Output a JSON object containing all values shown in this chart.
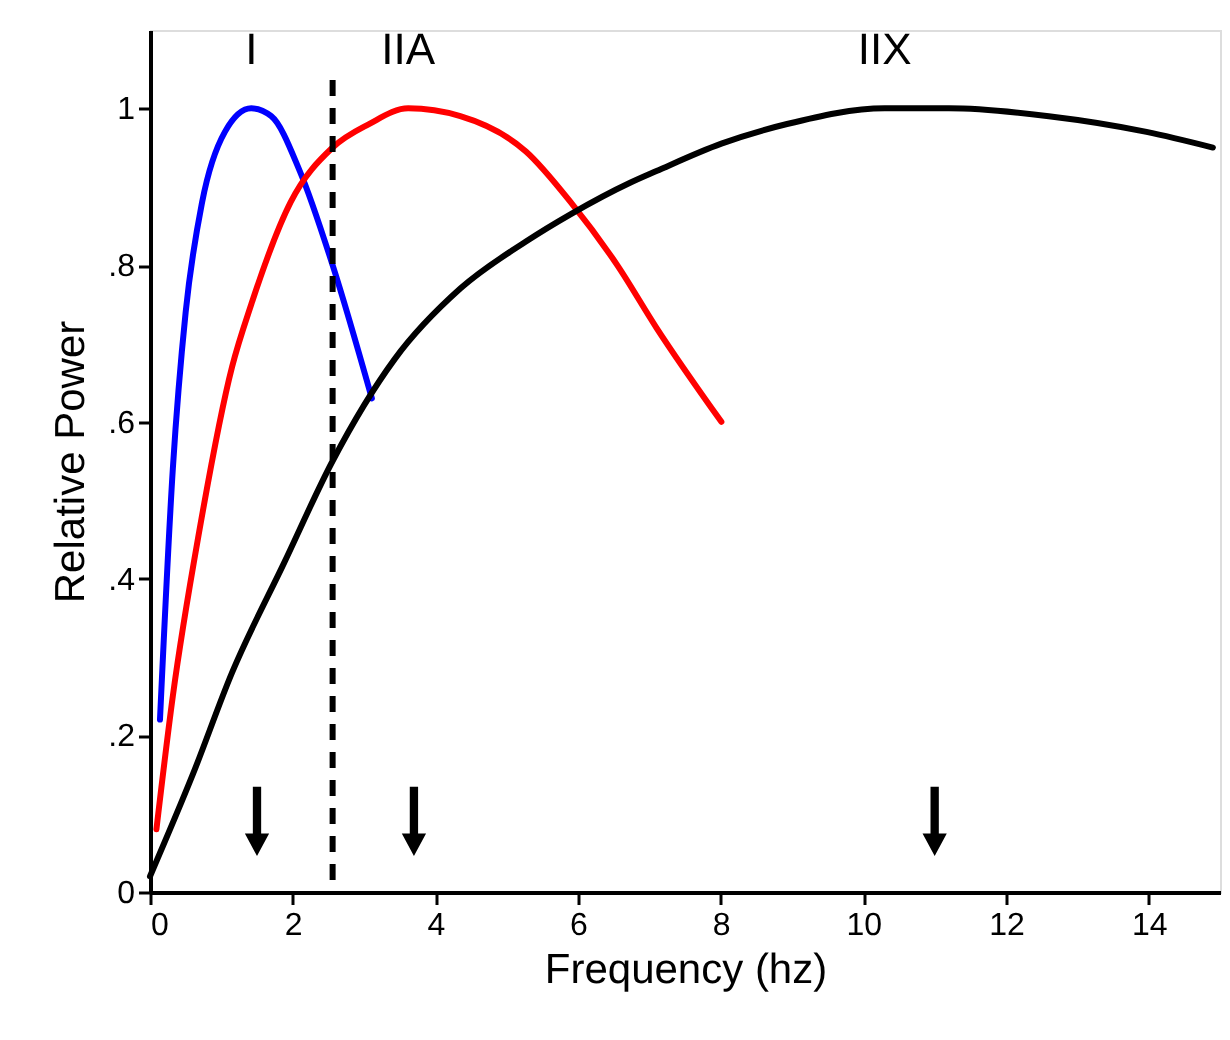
{
  "chart_data": {
    "type": "line",
    "xlabel": "Frequency (hz)",
    "ylabel": "Relative Power",
    "xlim": [
      0,
      15
    ],
    "ylim": [
      0,
      1.1
    ],
    "xticks": [
      0,
      2,
      4,
      6,
      8,
      10,
      12,
      14
    ],
    "yticks": [
      0,
      {
        "value": 0.2,
        "label": ".2"
      },
      {
        "value": 0.4,
        "label": ".4"
      },
      {
        "value": 0.6,
        "label": ".6"
      },
      {
        "value": 0.8,
        "label": ".8"
      },
      1
    ],
    "grid": false,
    "series": [
      {
        "color": "#0000ff",
        "x": [
          0.14,
          0.32,
          0.5,
          0.73,
          1.05,
          1.42,
          1.7,
          2.1,
          2.56,
          3.11
        ],
        "values": [
          0.22,
          0.54,
          0.74,
          0.88,
          0.97,
          1.0,
          0.99,
          0.92,
          0.8,
          0.63
        ]
      },
      {
        "color": "#ff0000",
        "x": [
          0.09,
          0.32,
          0.69,
          1.15,
          1.42,
          1.97,
          2.56,
          3.07,
          3.62,
          4.35,
          5.27,
          5.9,
          6.55,
          7.1,
          8.01
        ],
        "values": [
          0.08,
          0.25,
          0.46,
          0.67,
          0.75,
          0.88,
          0.95,
          0.98,
          1.0,
          0.99,
          0.945,
          0.88,
          0.8,
          0.72,
          0.6
        ]
      },
      {
        "color": "#000000",
        "x": [
          0,
          0.6,
          1.15,
          1.88,
          2.56,
          3.43,
          4.35,
          5.27,
          5.9,
          6.73,
          7.1,
          8.01,
          8.93,
          10.3,
          11.2,
          12.6,
          13.97,
          14.9
        ],
        "values": [
          0.02,
          0.15,
          0.28,
          0.42,
          0.55,
          0.68,
          0.77,
          0.83,
          0.865,
          0.905,
          0.92,
          0.955,
          0.98,
          1.0,
          1.0,
          0.99,
          0.97,
          0.95
        ]
      },
      {
        "type": "scatter",
        "color": "#000000",
        "x": [
          1.5,
          3.7,
          11
        ],
        "values": [
          0.09,
          0.09,
          0.09
        ]
      }
    ],
    "ref_lines": [
      {
        "axis": "x",
        "value": 2.56,
        "label": null,
        "color": "#000000",
        "line_style": "dashed"
      }
    ],
    "annotations": [
      "I",
      "IIA",
      "IIX"
    ]
  }
}
